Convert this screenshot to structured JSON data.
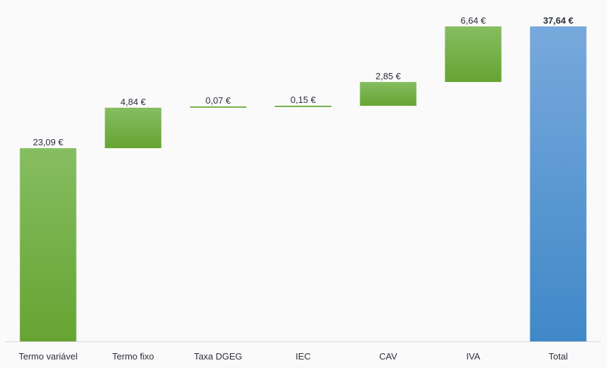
{
  "chart_data": {
    "type": "bar",
    "subtype": "waterfall",
    "categories": [
      "Termo variável",
      "Termo fixo",
      "Taxa DGEG",
      "IEC",
      "CAV",
      "IVA",
      "Total"
    ],
    "values": [
      23.09,
      4.84,
      0.07,
      0.15,
      2.85,
      6.64,
      37.64
    ],
    "value_labels": [
      "23,09 €",
      "4,84 €",
      "0,07 €",
      "0,15 €",
      "2,85 €",
      "6,64 €",
      "37,64 €"
    ],
    "total_index": 6,
    "ylim": [
      0,
      37.64
    ],
    "grid": false,
    "legend": "none",
    "title": "",
    "xlabel": "",
    "ylabel": ""
  },
  "colors": {
    "increase_top": "#86bd61",
    "increase_bottom": "#66a432",
    "total_top": "#78a9dc",
    "total_bottom": "#4088c8",
    "axis": "#d9d9d9",
    "text": "#2b2f3a",
    "background": "#fafafa"
  }
}
